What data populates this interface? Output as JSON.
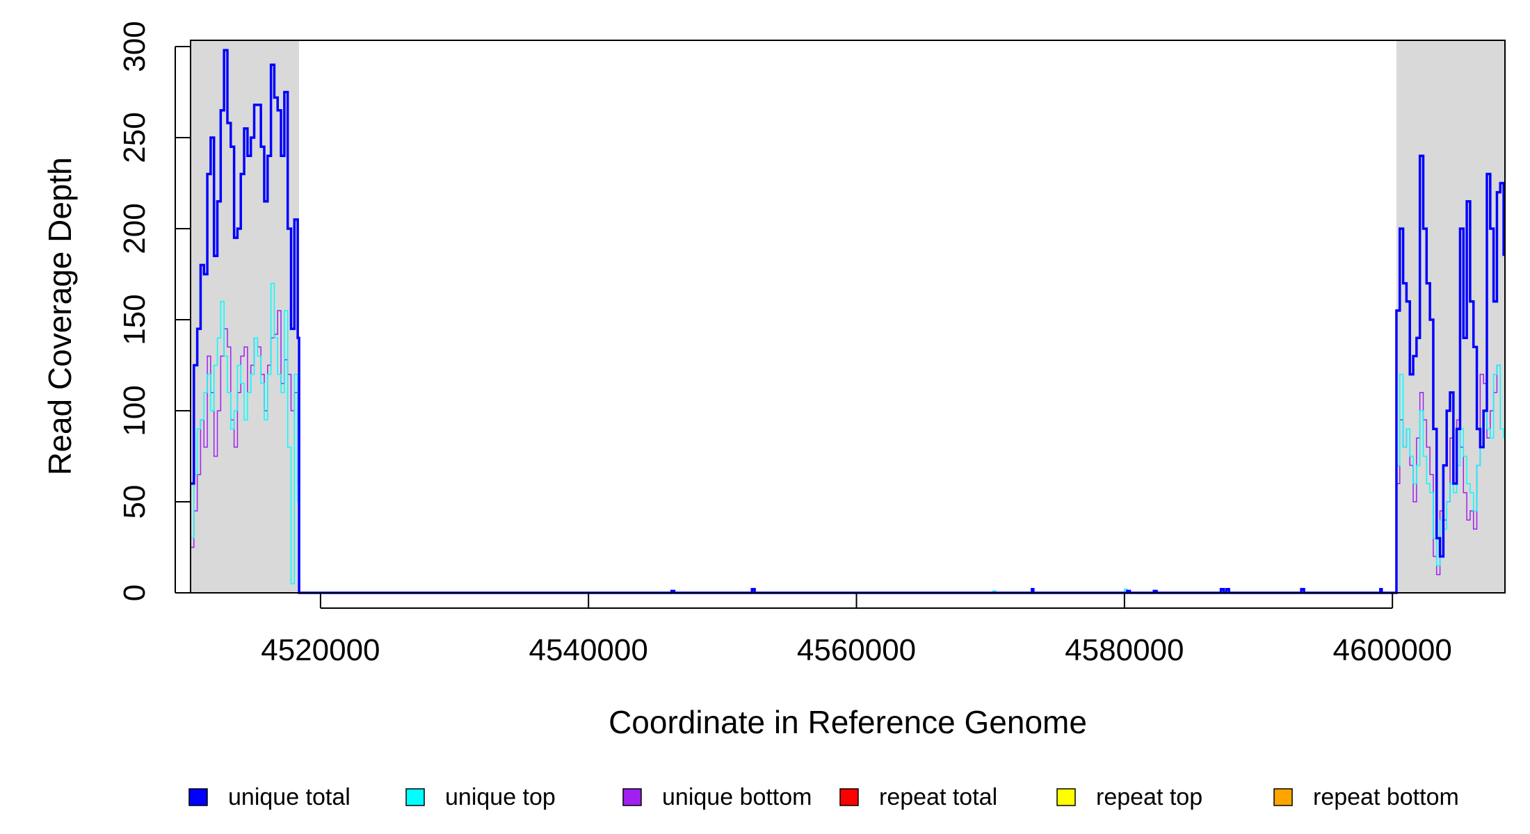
{
  "chart_data": {
    "type": "line",
    "title": "",
    "xlabel": "Coordinate in Reference Genome",
    "ylabel": "Read Coverage Depth",
    "xlim": [
      4510300,
      4608400
    ],
    "ylim": [
      0,
      300
    ],
    "x_ticks": [
      4520000,
      4540000,
      4560000,
      4580000,
      4600000
    ],
    "x_tick_labels": [
      "4520000",
      "4540000",
      "4560000",
      "4580000",
      "4600000"
    ],
    "y_ticks": [
      0,
      50,
      100,
      150,
      200,
      250,
      300
    ],
    "y_tick_labels": [
      "0",
      "50",
      "100",
      "150",
      "200",
      "250",
      "300"
    ],
    "grid": false,
    "shaded_regions": [
      {
        "x0": 4510300,
        "x1": 4518400,
        "color": "#d9d9d9"
      },
      {
        "x0": 4600300,
        "x1": 4608400,
        "color": "#d9d9d9"
      }
    ],
    "legend_position": "bottom",
    "legend": [
      {
        "label": "unique total",
        "color": "#0000ff"
      },
      {
        "label": "unique top",
        "color": "#00ffff"
      },
      {
        "label": "unique bottom",
        "color": "#a020f0"
      },
      {
        "label": "repeat total",
        "color": "#ff0000"
      },
      {
        "label": "repeat top",
        "color": "#ffff00"
      },
      {
        "label": "repeat bottom",
        "color": "#ffa500"
      }
    ],
    "series": [
      {
        "name": "unique total",
        "color": "#0000ff",
        "line_width": 3.5,
        "x": [
          4510300,
          4510550,
          4510800,
          4511050,
          4511300,
          4511550,
          4511800,
          4512050,
          4512300,
          4512550,
          4512800,
          4513050,
          4513300,
          4513550,
          4513800,
          4514050,
          4514300,
          4514550,
          4514800,
          4515050,
          4515300,
          4515550,
          4515800,
          4516050,
          4516300,
          4516550,
          4516800,
          4517050,
          4517300,
          4517550,
          4517800,
          4518050,
          4518300,
          4518400,
          4518401,
          4546000,
          4546200,
          4546400,
          4552000,
          4552200,
          4552400,
          4573000,
          4573100,
          4573200,
          4580000,
          4580200,
          4580400,
          4582000,
          4582200,
          4582400,
          4587000,
          4587200,
          4587400,
          4587600,
          4587800,
          4593000,
          4593200,
          4593400,
          4599000,
          4599100,
          4599200,
          4600299,
          4600300,
          4600550,
          4600800,
          4601050,
          4601300,
          4601550,
          4601800,
          4602050,
          4602300,
          4602550,
          4602800,
          4603050,
          4603300,
          4603550,
          4603800,
          4604050,
          4604300,
          4604550,
          4604800,
          4605050,
          4605300,
          4605550,
          4605800,
          4606050,
          4606300,
          4606550,
          4606800,
          4607050,
          4607300,
          4607550,
          4607800,
          4608050,
          4608300
        ],
        "y": [
          60,
          125,
          145,
          180,
          175,
          230,
          250,
          185,
          215,
          265,
          298,
          258,
          245,
          195,
          200,
          230,
          255,
          240,
          250,
          268,
          268,
          245,
          215,
          240,
          290,
          272,
          265,
          240,
          275,
          200,
          145,
          205,
          140,
          93,
          0,
          0,
          1,
          0,
          0,
          2,
          0,
          0,
          2,
          0,
          0,
          1,
          0,
          0,
          1,
          0,
          0,
          2,
          0,
          2,
          0,
          0,
          2,
          0,
          0,
          2,
          0,
          0,
          155,
          200,
          170,
          160,
          120,
          130,
          140,
          240,
          200,
          170,
          150,
          90,
          30,
          20,
          70,
          100,
          110,
          60,
          90,
          200,
          140,
          215,
          160,
          135,
          90,
          80,
          100,
          230,
          200,
          160,
          220,
          225,
          185
        ]
      },
      {
        "name": "unique top",
        "color": "#00ffff",
        "line_width": 1.5,
        "x": [
          4510300,
          4510550,
          4510800,
          4511050,
          4511300,
          4511550,
          4511800,
          4512050,
          4512300,
          4512550,
          4512800,
          4513050,
          4513300,
          4513550,
          4513800,
          4514050,
          4514300,
          4514550,
          4514800,
          4515050,
          4515300,
          4515550,
          4515800,
          4516050,
          4516300,
          4516550,
          4516800,
          4517050,
          4517300,
          4517550,
          4517800,
          4518050,
          4518300,
          4518400,
          4518401,
          4546000,
          4546200,
          4546400,
          4570000,
          4570200,
          4570400,
          4579800,
          4580000,
          4580200,
          4600299,
          4600300,
          4600550,
          4600800,
          4601050,
          4601300,
          4601550,
          4601800,
          4602050,
          4602300,
          4602550,
          4602800,
          4603050,
          4603300,
          4603550,
          4603800,
          4604050,
          4604300,
          4604550,
          4604800,
          4605050,
          4605300,
          4605550,
          4605800,
          4606050,
          4606300,
          4606550,
          4606800,
          4607050,
          4607300,
          4607550,
          4607800,
          4608050,
          4608300
        ],
        "y": [
          30,
          65,
          90,
          95,
          110,
          120,
          100,
          125,
          140,
          160,
          130,
          110,
          90,
          100,
          125,
          115,
          95,
          110,
          120,
          140,
          130,
          115,
          95,
          120,
          170,
          140,
          120,
          110,
          155,
          80,
          5,
          120,
          50,
          30,
          0,
          0,
          1,
          0,
          0,
          1,
          0,
          0,
          2,
          0,
          0,
          70,
          120,
          80,
          90,
          75,
          60,
          70,
          100,
          75,
          60,
          55,
          30,
          15,
          40,
          35,
          50,
          60,
          55,
          70,
          90,
          75,
          60,
          55,
          45,
          70,
          80,
          100,
          90,
          85,
          120,
          125,
          90,
          85
        ]
      },
      {
        "name": "unique bottom",
        "color": "#a020f0",
        "line_width": 1.5,
        "x": [
          4510300,
          4510550,
          4510800,
          4511050,
          4511300,
          4511550,
          4511800,
          4512050,
          4512300,
          4512550,
          4512800,
          4513050,
          4513300,
          4513550,
          4513800,
          4514050,
          4514300,
          4514550,
          4514800,
          4515050,
          4515300,
          4515550,
          4515800,
          4516050,
          4516300,
          4516550,
          4516800,
          4517050,
          4517300,
          4517550,
          4517800,
          4518050,
          4518300,
          4518400,
          4518401,
          4552000,
          4552200,
          4552400,
          4600299,
          4600300,
          4600550,
          4600800,
          4601050,
          4601300,
          4601550,
          4601800,
          4602050,
          4602300,
          4602550,
          4602800,
          4603050,
          4603300,
          4603550,
          4603800,
          4604050,
          4604300,
          4604550,
          4604800,
          4605050,
          4605300,
          4605550,
          4605800,
          4606050,
          4606300,
          4606550,
          4606800,
          4607050,
          4607300,
          4607550,
          4607800,
          4608050,
          4608300
        ],
        "y": [
          25,
          45,
          65,
          95,
          80,
          130,
          110,
          75,
          100,
          130,
          145,
          135,
          95,
          80,
          110,
          130,
          135,
          110,
          125,
          140,
          135,
          120,
          100,
          125,
          140,
          142,
          155,
          115,
          128,
          120,
          100,
          110,
          60,
          40,
          0,
          0,
          1,
          0,
          0,
          60,
          95,
          80,
          90,
          70,
          50,
          85,
          110,
          95,
          80,
          65,
          20,
          10,
          45,
          40,
          50,
          85,
          60,
          95,
          80,
          55,
          40,
          45,
          35,
          70,
          120,
          115,
          85,
          100,
          110,
          125,
          90,
          90
        ]
      },
      {
        "name": "repeat total",
        "color": "#ff0000",
        "line_width": 2,
        "x": [
          4510300,
          4608400
        ],
        "y": [
          0,
          0
        ]
      },
      {
        "name": "repeat top",
        "color": "#ffff00",
        "line_width": 2,
        "x": [
          4510300,
          4608400
        ],
        "y": [
          0,
          0
        ]
      },
      {
        "name": "repeat bottom",
        "color": "#ffa500",
        "line_width": 2,
        "x": [
          4510300,
          4608400
        ],
        "y": [
          0,
          0
        ]
      }
    ]
  }
}
